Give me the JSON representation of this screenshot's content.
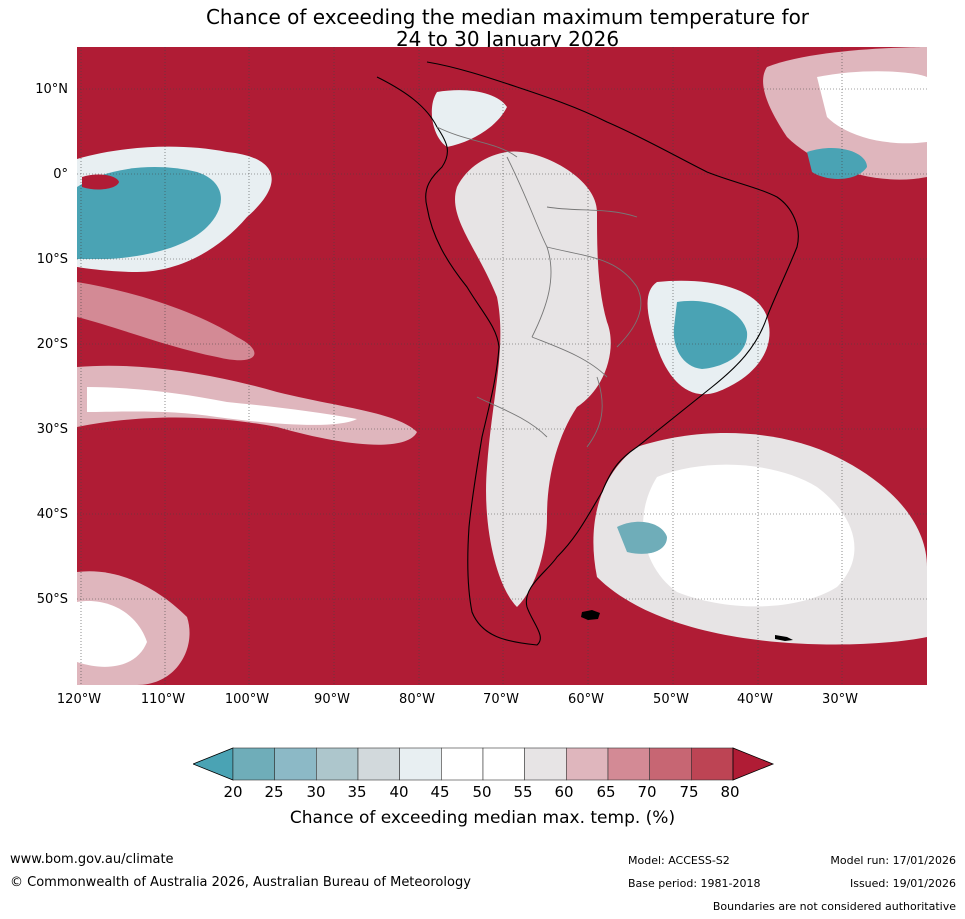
{
  "title": {
    "line1": "Chance of exceeding the median maximum temperature for",
    "line2": "24 to 30 January 2026"
  },
  "map": {
    "lat_labels": [
      "10°N",
      "0°",
      "10°S",
      "20°S",
      "30°S",
      "40°S",
      "50°S"
    ],
    "lon_labels": [
      "120°W",
      "110°W",
      "100°W",
      "90°W",
      "80°W",
      "70°W",
      "60°W",
      "50°W",
      "40°W",
      "30°W"
    ]
  },
  "colorbar": {
    "ticks": [
      "20",
      "25",
      "30",
      "35",
      "40",
      "45",
      "50",
      "55",
      "60",
      "65",
      "70",
      "75",
      "80"
    ],
    "colors": [
      "#4aa3b4",
      "#6fadb9",
      "#8cb9c6",
      "#adc6cc",
      "#d2d9dc",
      "#e8eff2",
      "#ffffff",
      "#ffffff",
      "#e7e4e5",
      "#dfb6bd",
      "#d38a95",
      "#c76673",
      "#bd4454",
      "#b01c35"
    ],
    "label": "Chance of exceeding median max. temp. (%)"
  },
  "footer": {
    "url": "www.bom.gov.au/climate",
    "copyright": "© Commonwealth of Australia 2026, Australian Bureau of Meteorology",
    "model": "Model: ACCESS-S2",
    "base_period": "Base period: 1981-2018",
    "model_run": "Model run: 17/01/2026",
    "issued": "Issued: 19/01/2026",
    "disclaimer": "Boundaries are not considered authoritative"
  }
}
